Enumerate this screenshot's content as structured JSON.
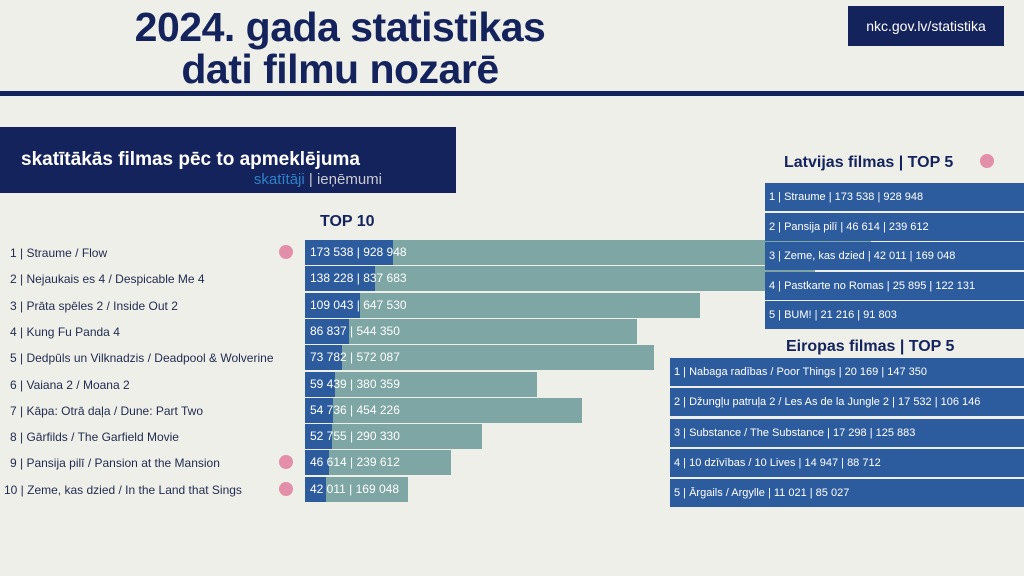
{
  "header": {
    "title_line1": "2024. gada statistikas",
    "title_line2": "dati filmu nozarē",
    "url": "nkc.gov.lv/statistika"
  },
  "panel": {
    "title": "skatītākās filmas pēc to apmeklējuma",
    "legend_visitors": "skatītāji",
    "legend_sep": " | ",
    "legend_revenue": "ieņēmumi"
  },
  "top10_title": "TOP 10",
  "colors": {
    "visitors": "#2c5b9e",
    "revenue": "#7ea6a4",
    "latvian_marker": "#e48fa9",
    "navy": "#14235c"
  },
  "chart_data": {
    "type": "bar",
    "title": "TOP 10",
    "categories": [
      "1 | Straume / Flow",
      "2 | Nejaukais es 4 / Despicable Me 4",
      "3 | Prāta spēles 2 / Inside Out 2",
      "4 | Kung Fu Panda 4",
      "5 | Dedpūls un Vilknadzis / Deadpool & Wolverine",
      "6 | Vaiana 2 / Moana 2",
      "7 | Kāpa: Otrā daļa / Dune: Part Two",
      "8 | Gārfilds / The Garfield Movie",
      "9 | Pansija pilī / Pansion at the Mansion",
      "10 | Zeme, kas dzied / In the Land that Sings"
    ],
    "visitor_labels": [
      "173 538",
      "138 228",
      "109 043",
      "86 837",
      "73 782",
      "59 439",
      "54 736",
      "52 755",
      "46 614",
      "42 011"
    ],
    "revenue_labels": [
      "928 948",
      "837 683",
      "647 530",
      "544 350",
      "572 087",
      "380 359",
      "454 226",
      "290 330",
      "239 612",
      "169 048"
    ],
    "series": [
      {
        "name": "skatītāji",
        "values": [
          173538,
          138228,
          109043,
          86837,
          73782,
          59439,
          54736,
          52755,
          46614,
          42011
        ]
      },
      {
        "name": "ieņēmumi",
        "values": [
          928948,
          837683,
          647530,
          544350,
          572087,
          380359,
          454226,
          290330,
          239612,
          169048
        ]
      }
    ],
    "latvian_marker": [
      true,
      false,
      false,
      false,
      false,
      false,
      false,
      false,
      true,
      true
    ]
  },
  "latvian": {
    "title": "Latvijas filmas | TOP 5",
    "rows": [
      "1 | Straume | 173 538 | 928 948",
      "2 | Pansija pilī | 46 614 | 239 612",
      "3 | Zeme, kas dzied | 42 011 | 169 048",
      "4 | Pastkarte no Romas | 25 895 | 122 131",
      "5 | BUM! | 21 216 | 91 803"
    ]
  },
  "european": {
    "title": "Eiropas filmas | TOP 5",
    "rows": [
      "1 | Nabaga radības / Poor Things  |  20 169 | 147 350",
      "2 | Džungļu patruļa 2 / Les As de la Jungle 2 | 17 532 | 106 146",
      "3 | Substance / The Substance | 17 298 | 125 883",
      "4 | 10 dzīvības / 10 Lives | 14 947 | 88 712",
      "5 | Ārgails / Argylle | 11 021 | 85 027"
    ]
  }
}
